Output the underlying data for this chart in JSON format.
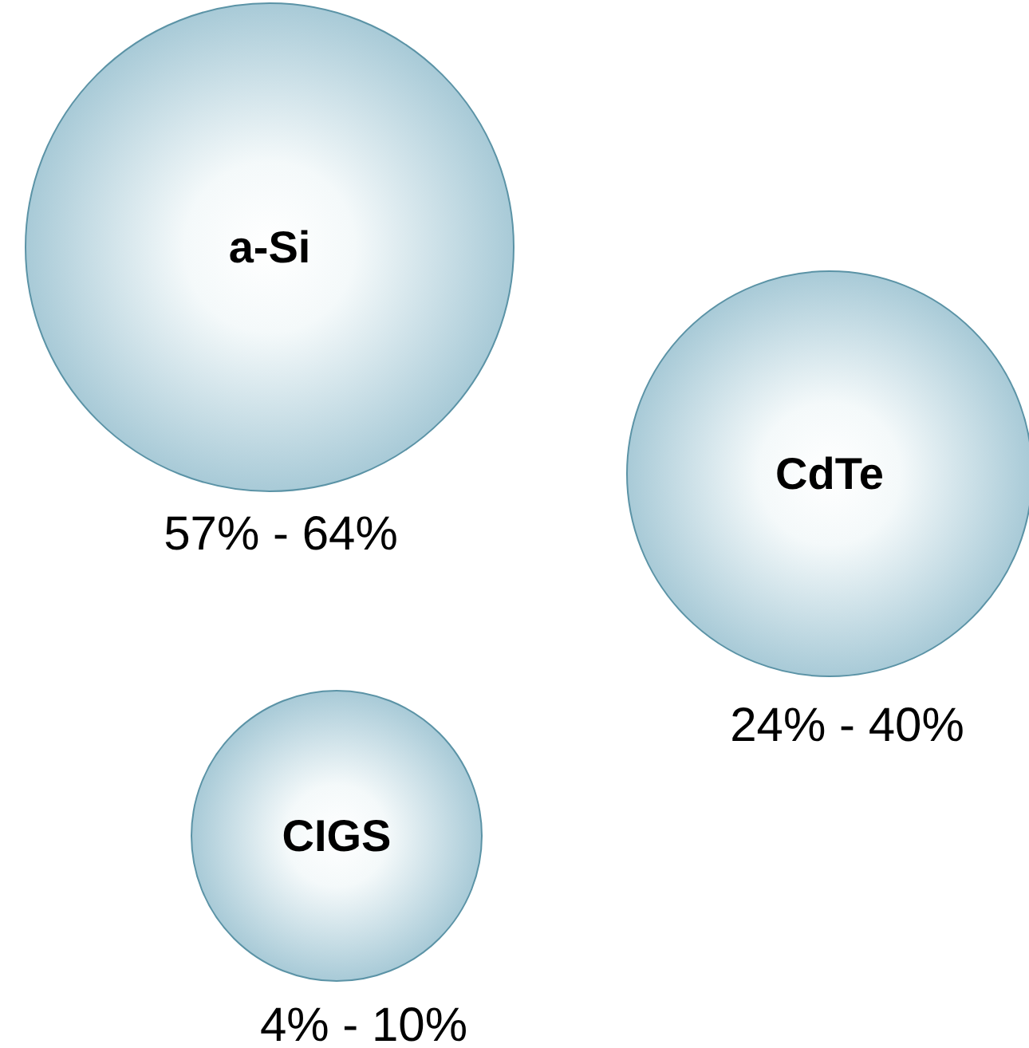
{
  "chart_data": {
    "type": "other",
    "categories": [
      "a-Si",
      "CdTe",
      "CIGS"
    ],
    "values": [
      57,
      24,
      4
    ],
    "value_labels": [
      "57% - 64%",
      "24% - 40%",
      "4% - 10%"
    ],
    "color": "#a8cad7"
  }
}
